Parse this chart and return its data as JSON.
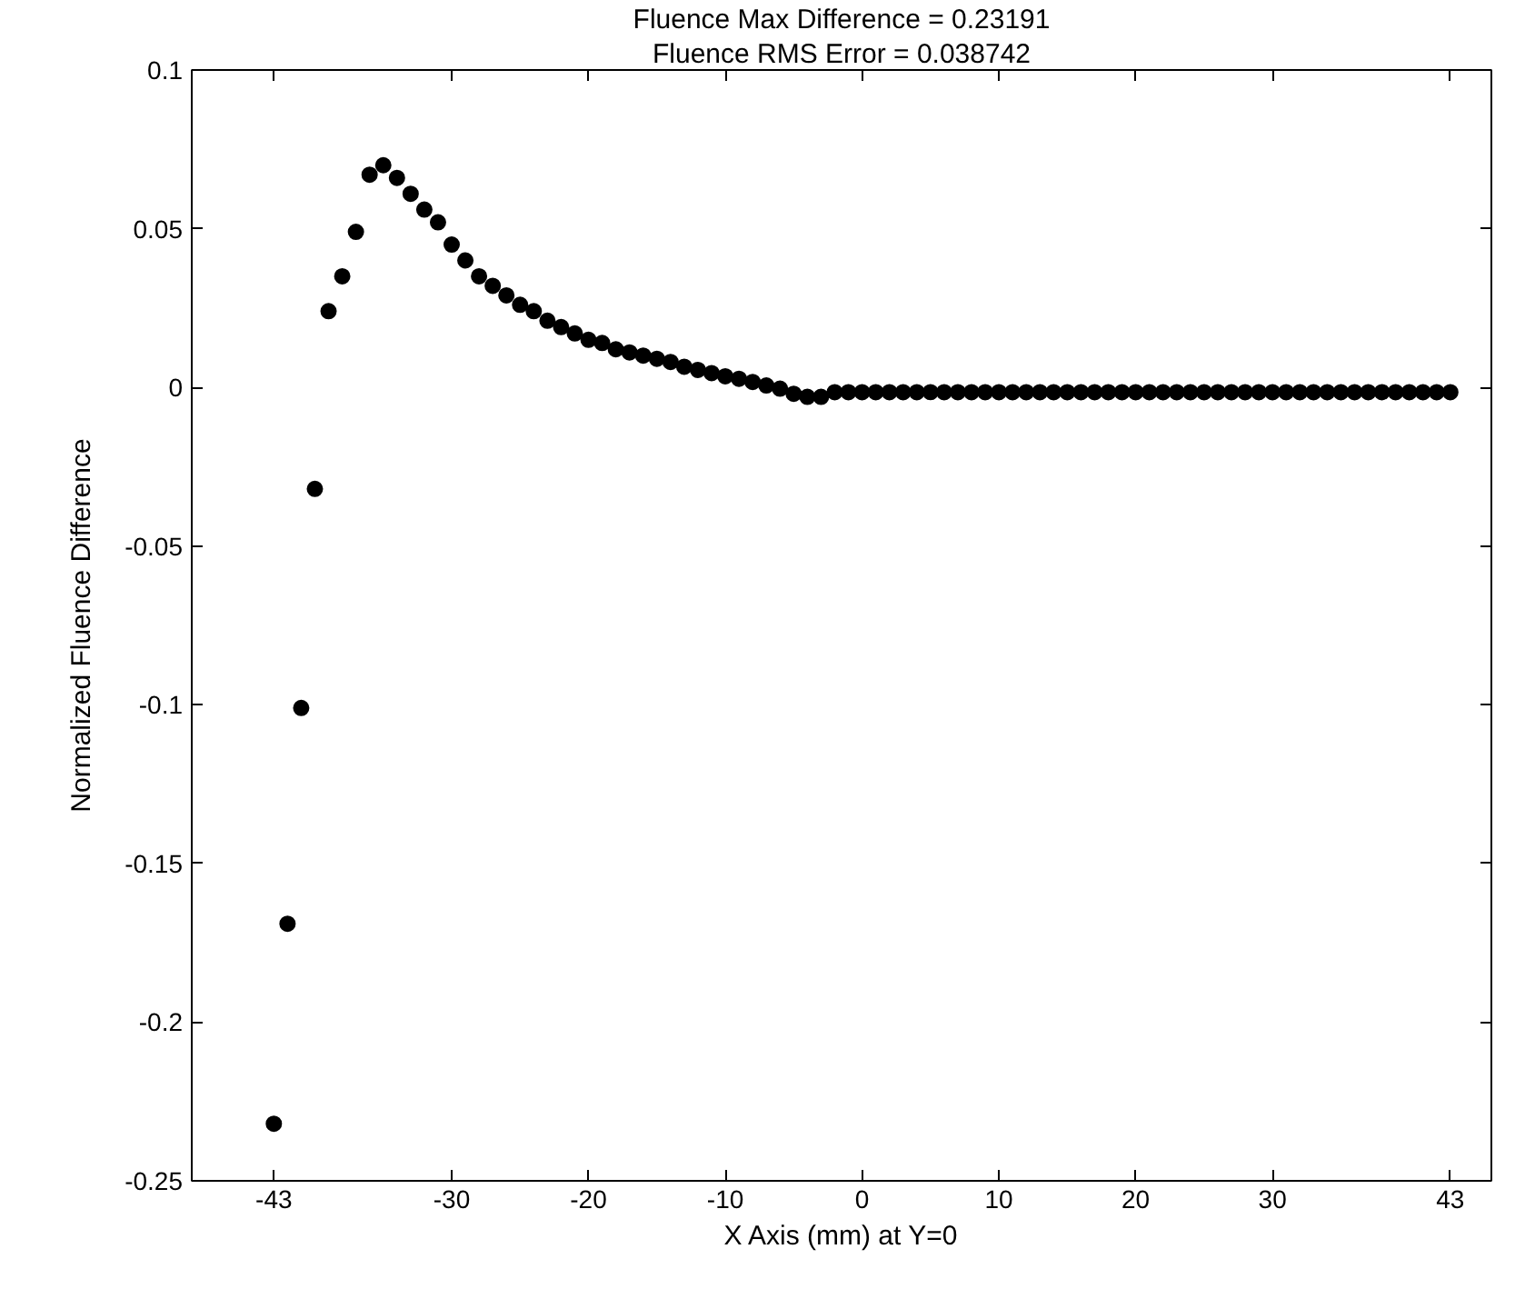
{
  "chart_data": {
    "type": "scatter",
    "title": "Fluence Max Difference = 0.23191",
    "subtitle": "Fluence RMS Error = 0.038742",
    "xlabel": "X Axis (mm) at Y=0",
    "ylabel": "Normalized Fluence Difference",
    "x": [
      -43,
      -42,
      -41,
      -40,
      -39,
      -38,
      -37,
      -36,
      -35,
      -34,
      -33,
      -32,
      -31,
      -30,
      -29,
      -28,
      -27,
      -26,
      -25,
      -24,
      -23,
      -22,
      -21,
      -20,
      -19,
      -18,
      -17,
      -16,
      -15,
      -14,
      -13,
      -12,
      -11,
      -10,
      -9,
      -8,
      -7,
      -6,
      -5,
      -4,
      -3,
      -2,
      -1,
      0,
      1,
      2,
      3,
      4,
      5,
      6,
      7,
      8,
      9,
      10,
      11,
      12,
      13,
      14,
      15,
      16,
      17,
      18,
      19,
      20,
      21,
      22,
      23,
      24,
      25,
      26,
      27,
      28,
      29,
      30,
      31,
      32,
      33,
      34,
      35,
      36,
      37,
      38,
      39,
      40,
      41,
      42,
      43
    ],
    "series": [
      {
        "color": "#000000",
        "values": [
          -0.232,
          -0.169,
          -0.101,
          -0.032,
          0.024,
          0.035,
          0.049,
          0.067,
          0.07,
          0.066,
          0.061,
          0.056,
          0.052,
          0.045,
          0.04,
          0.035,
          0.032,
          0.029,
          0.026,
          0.024,
          0.021,
          0.019,
          0.017,
          0.015,
          0.014,
          0.012,
          0.011,
          0.01,
          0.009,
          0.008,
          0.0065,
          0.0055,
          0.0045,
          0.0035,
          0.0027,
          0.0017,
          0.0006,
          -0.0004,
          -0.002,
          -0.003,
          -0.003,
          -0.0015,
          -0.0015,
          -0.0015,
          -0.0015,
          -0.0015,
          -0.0015,
          -0.0015,
          -0.0015,
          -0.0015,
          -0.0015,
          -0.0015,
          -0.0015,
          -0.0015,
          -0.0015,
          -0.0015,
          -0.0015,
          -0.0015,
          -0.0015,
          -0.0015,
          -0.0015,
          -0.0015,
          -0.0015,
          -0.0015,
          -0.0015,
          -0.0015,
          -0.0015,
          -0.0015,
          -0.0015,
          -0.0015,
          -0.0015,
          -0.0015,
          -0.0015,
          -0.0015,
          -0.0015,
          -0.0015,
          -0.0015,
          -0.0015,
          -0.0015,
          -0.0015,
          -0.0015,
          -0.0015,
          -0.0015,
          -0.0015,
          -0.0015,
          -0.0015,
          -0.0015
        ]
      }
    ],
    "marker": "circle",
    "grid": false,
    "xlim": [
      -49,
      46
    ],
    "xticks": [
      -43,
      -30,
      -20,
      -10,
      0,
      10,
      20,
      30,
      43
    ],
    "ylim": [
      -0.25,
      0.1
    ],
    "yticks": [
      {
        "value": -0.25,
        "label": "-0.25"
      },
      {
        "value": -0.2,
        "label": "-0.2"
      },
      {
        "value": -0.15,
        "label": "-0.15"
      },
      {
        "value": -0.1,
        "label": "-0.1"
      },
      {
        "value": -0.05,
        "label": "-0.05"
      },
      0,
      {
        "value": 0.05,
        "label": "0.05"
      },
      {
        "value": 0.1,
        "label": "0.1"
      }
    ]
  }
}
